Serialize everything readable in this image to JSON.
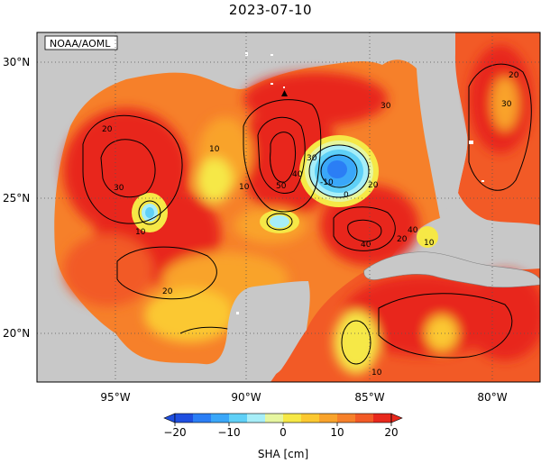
{
  "map": {
    "title": "2023-07-10",
    "credit": "NOAA/AOML",
    "lat_ticks": [
      "30°N",
      "25°N",
      "20°N"
    ],
    "lon_ticks": [
      "95°W",
      "90°W",
      "85°W",
      "80°W"
    ],
    "contour_labels": [
      "20",
      "30",
      "40",
      "50",
      "10",
      "0",
      "-10",
      "20",
      "30",
      "40",
      "30",
      "20",
      "10",
      "10",
      "40",
      "20",
      "10",
      "30",
      "20",
      "10"
    ],
    "colorbar": {
      "title": "SHA [cm]",
      "ticks": [
        "−20",
        "−10",
        "0",
        "10",
        "20"
      ],
      "colors": [
        "#1f4fe0",
        "#2b7ef5",
        "#3aa7f9",
        "#5fd0f7",
        "#a7eef8",
        "#e6f6a0",
        "#f6e846",
        "#fbc830",
        "#f9a32b",
        "#f6802a",
        "#f25a26",
        "#e8281c"
      ]
    },
    "land_color": "#c8c8c8",
    "ocean_base_color": "#f25a26"
  }
}
